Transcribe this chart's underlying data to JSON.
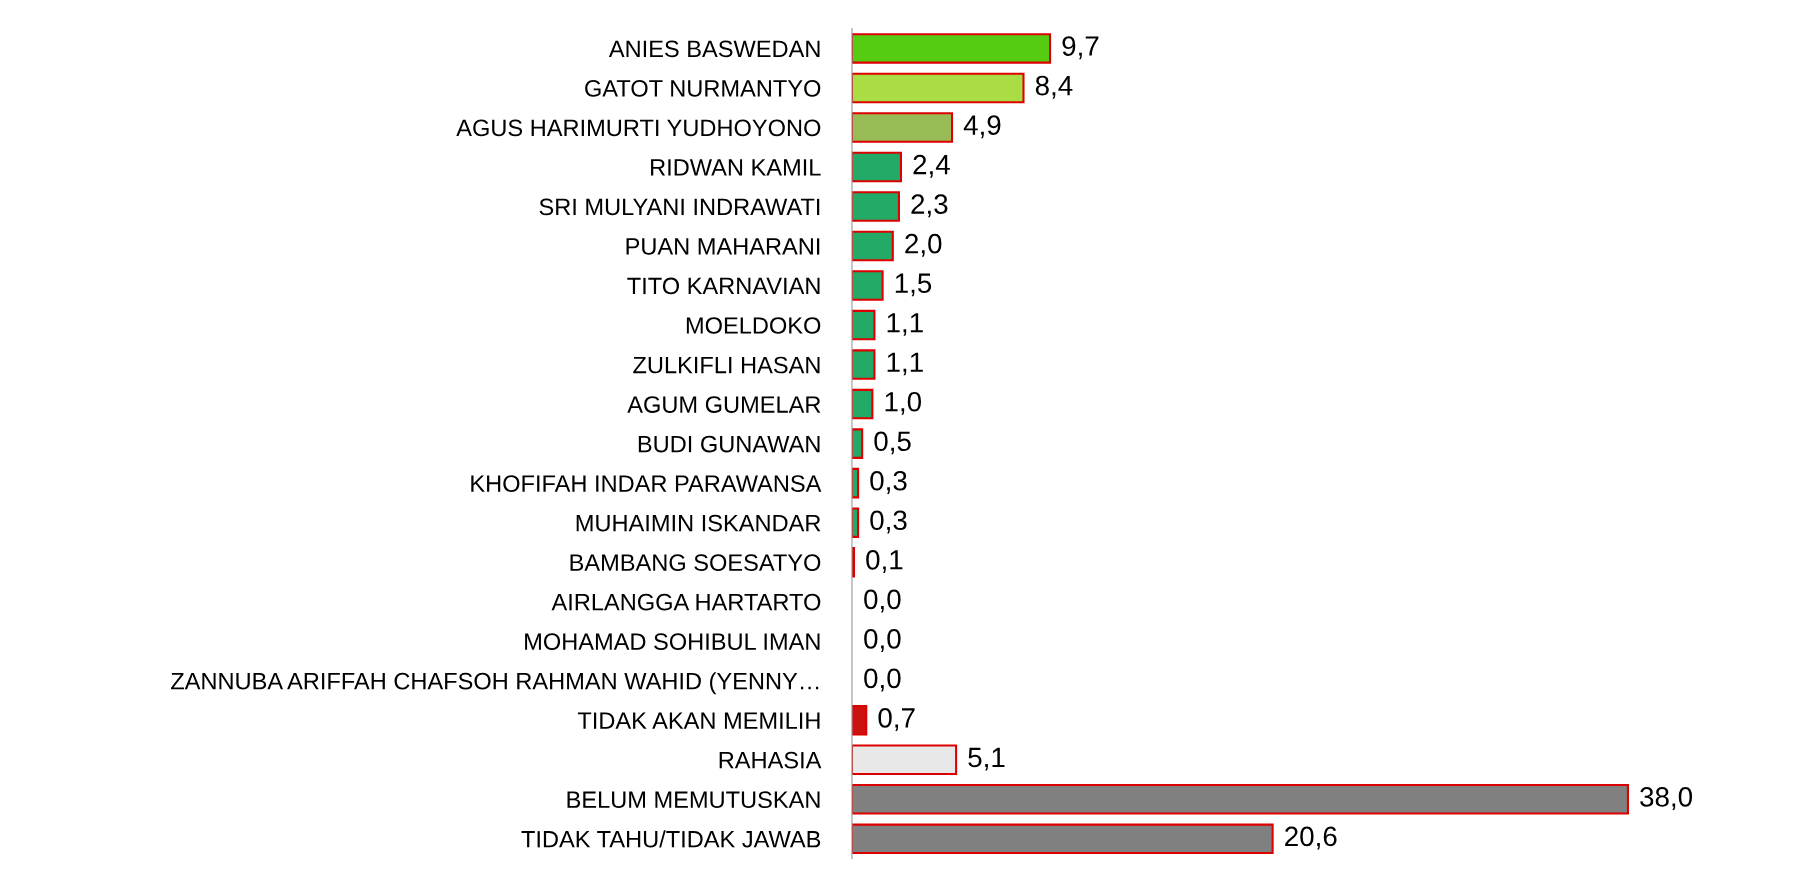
{
  "chart_data": {
    "type": "bar",
    "orientation": "horizontal",
    "data_labels": true,
    "categories": [
      "ANIES BASWEDAN",
      "GATOT NURMANTYO",
      "AGUS HARIMURTI YUDHOYONO",
      "RIDWAN KAMIL",
      "SRI MULYANI INDRAWATI",
      "PUAN MAHARANI",
      "TITO KARNAVIAN",
      "MOELDOKO",
      "ZULKIFLI HASAN",
      "AGUM GUMELAR",
      "BUDI GUNAWAN",
      "KHOFIFAH INDAR PARAWANSA",
      "MUHAIMIN ISKANDAR",
      "BAMBANG SOESATYO",
      "AIRLANGGA HARTARTO",
      "MOHAMAD SOHIBUL IMAN",
      "ZANNUBA ARIFFAH CHAFSOH RAHMAN WAHID (YENNY…",
      "TIDAK AKAN MEMILIH",
      "RAHASIA",
      "BELUM MEMUTUSKAN",
      "TIDAK TAHU/TIDAK JAWAB"
    ],
    "values": [
      9.7,
      8.4,
      4.9,
      2.4,
      2.3,
      2.0,
      1.5,
      1.1,
      1.1,
      1.0,
      0.5,
      0.3,
      0.3,
      0.1,
      0.0,
      0.0,
      0.0,
      0.7,
      5.1,
      38.0,
      20.6
    ],
    "value_labels": [
      "9,7",
      "8,4",
      "4,9",
      "2,4",
      "2,3",
      "2,0",
      "1,5",
      "1,1",
      "1,1",
      "1,0",
      "0,5",
      "0,3",
      "0,3",
      "0,1",
      "0,0",
      "0,0",
      "0,0",
      "0,7",
      "5,1",
      "38,0",
      "20,6"
    ],
    "colors": [
      "#55cc11",
      "#aadd44",
      "#99bb55",
      "#22aa66",
      "#22aa66",
      "#22aa66",
      "#22aa66",
      "#22aa66",
      "#22aa66",
      "#22aa66",
      "#22aa66",
      "#22aa66",
      "#22aa66",
      "#22aa66",
      "#22aa66",
      "#22aa66",
      "#22aa66",
      "#cc1111",
      "#e8e8e8",
      "#808080",
      "#808080"
    ],
    "grid": false,
    "legend": false
  }
}
